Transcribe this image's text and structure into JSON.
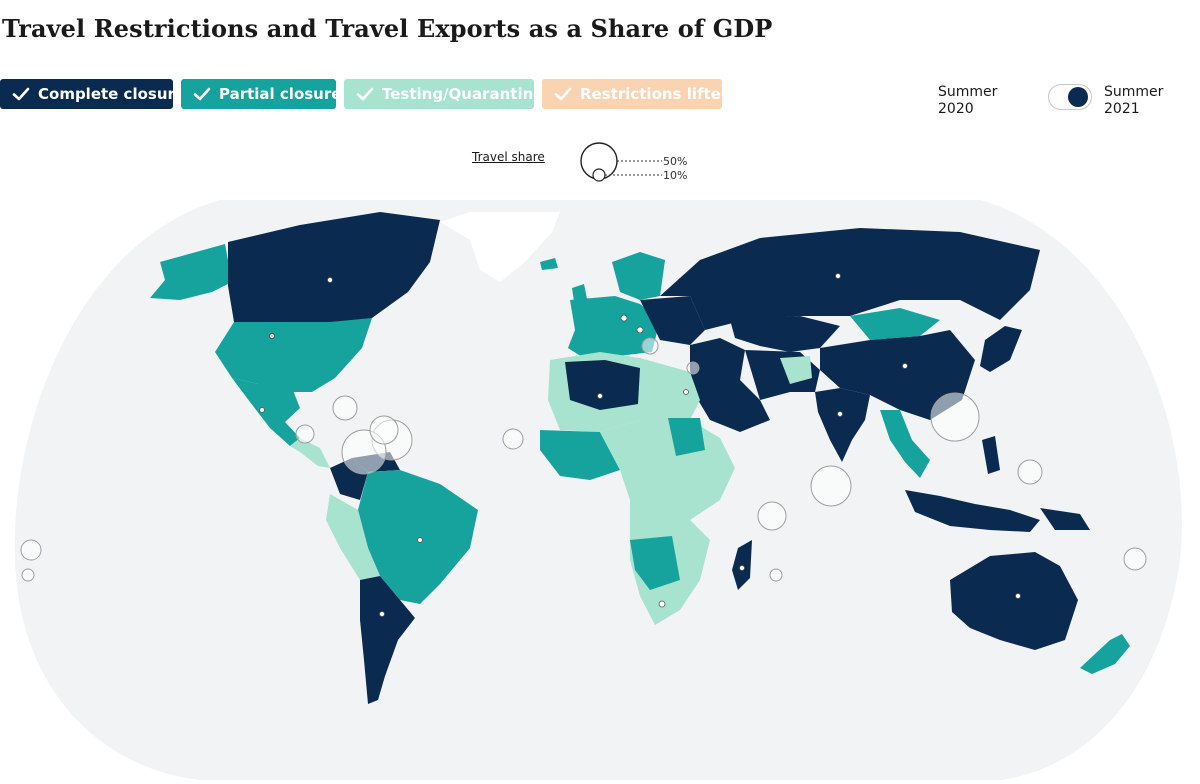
{
  "title": "Travel Restrictions and Travel Exports as a Share of GDP",
  "filters": [
    {
      "label": "Complete closure",
      "color": "#0b2a4f",
      "text_color": "#ffffff",
      "active": true
    },
    {
      "label": "Partial closure",
      "color": "#17a39d",
      "text_color": "#ffffff",
      "active": true
    },
    {
      "label": "Testing/Quarantine",
      "color": "#a8e3cf",
      "text_color": "#ffffff",
      "active": true
    },
    {
      "label": "Restrictions lifted",
      "color": "#fad3b2",
      "text_color": "#ffffff",
      "active": true
    }
  ],
  "toggle": {
    "left_label": "Summer 2020",
    "right_label": "Summer 2021",
    "selected": "Summer 2021"
  },
  "size_legend": {
    "label": "Travel share",
    "large": "50%",
    "small": "10%"
  },
  "colors": {
    "ocean": "#f1f3f4",
    "no_data": "#e8eaea",
    "bubble_stroke": "#b9b9b9"
  }
}
